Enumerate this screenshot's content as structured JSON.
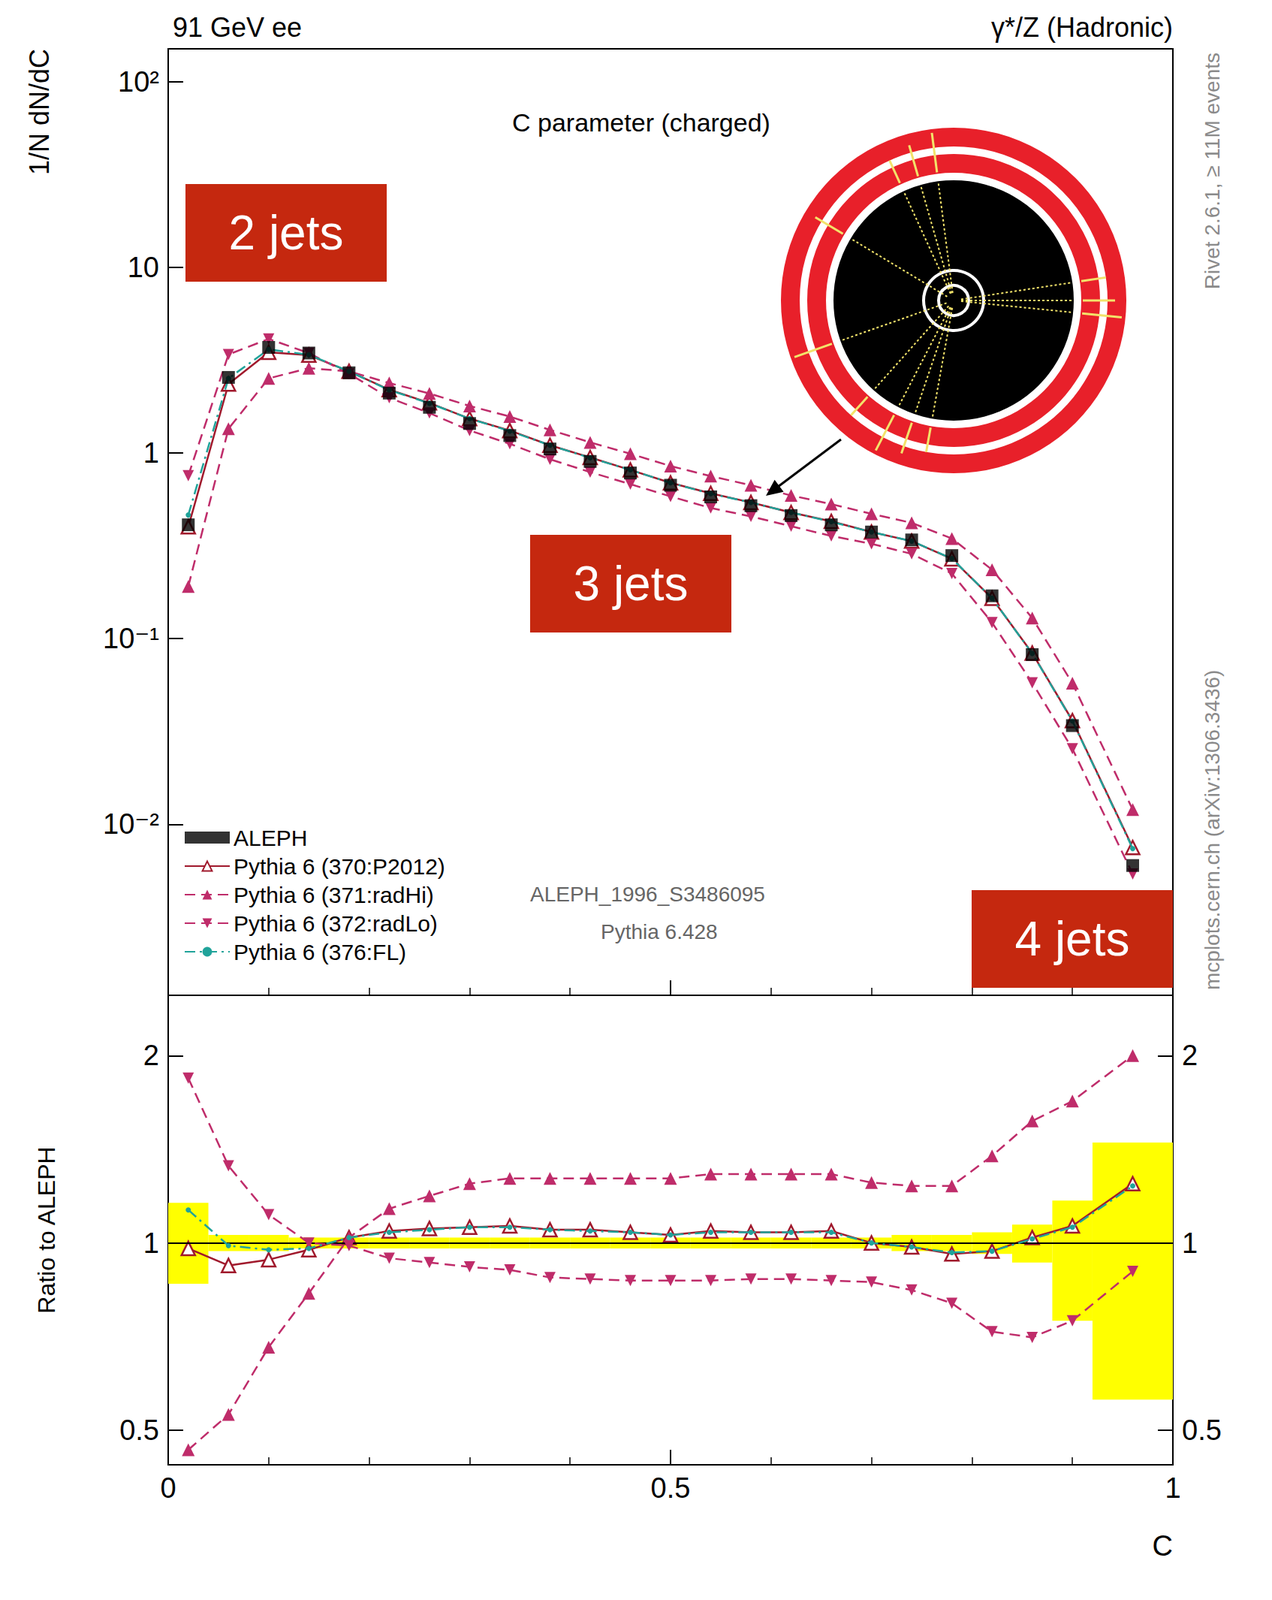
{
  "chart_data": [
    {
      "type": "line",
      "title": "C parameter (charged)",
      "header": [
        "91 GeV ee",
        "γ*/Z (Hadronic)"
      ],
      "annotations": [
        "2 jets",
        "3 jets",
        "4 jets"
      ],
      "notes": [
        "ALEPH_1996_S3486095",
        "Pythia 6.428"
      ],
      "side_texts": [
        "Rivet 2.6.1, ≥ 11M events",
        "mcplots.cern.ch (arXiv:1306.3436)"
      ],
      "y_label": "1/N dN/dC",
      "x": [
        0.02,
        0.06,
        0.1,
        0.14,
        0.18,
        0.22,
        0.26,
        0.3,
        0.34,
        0.38,
        0.42,
        0.46,
        0.5,
        0.54,
        0.58,
        0.62,
        0.66,
        0.7,
        0.74,
        0.78,
        0.82,
        0.86,
        0.9,
        0.96
      ],
      "xlim": [
        0,
        1
      ],
      "xticks": [
        0,
        0.5,
        1
      ],
      "ylim": [
        0.0012,
        150
      ],
      "yticks": [
        {
          "value": 0.01,
          "label": "10⁻²"
        },
        {
          "value": 0.1,
          "label": "10⁻¹"
        },
        1,
        10,
        {
          "value": 100,
          "label": "10²"
        }
      ],
      "log": "y",
      "grid": false,
      "legend": "lower left",
      "series": [
        {
          "name": "ALEPH",
          "type": "scatter",
          "color": "#000000",
          "marker": "square",
          "line_style": "none",
          "values": [
            0.41,
            2.55,
            3.7,
            3.45,
            2.7,
            2.1,
            1.76,
            1.44,
            1.24,
            1.05,
            0.9,
            0.78,
            0.67,
            0.58,
            0.52,
            0.46,
            0.41,
            0.375,
            0.34,
            0.28,
            0.17,
            0.082,
            0.034,
            0.006
          ]
        },
        {
          "name": "Pythia 6 (370:P2012)",
          "type": "line",
          "color": "#a0192c",
          "marker": "triangle-open",
          "line_style": "solid",
          "values": [
            0.4,
            2.35,
            3.48,
            3.36,
            2.75,
            2.19,
            1.86,
            1.53,
            1.32,
            1.1,
            0.945,
            0.81,
            0.69,
            0.606,
            0.541,
            0.478,
            0.428,
            0.375,
            0.335,
            0.269,
            0.165,
            0.0836,
            0.0362,
            0.0075
          ]
        },
        {
          "name": "Pythia 6 (371:radHi)",
          "type": "line",
          "color": "#bf2c6a",
          "marker": "triangle",
          "line_style": "dashed",
          "values": [
            0.191,
            1.35,
            2.52,
            2.86,
            2.75,
            2.38,
            2.09,
            1.79,
            1.57,
            1.33,
            1.14,
            0.99,
            0.85,
            0.75,
            0.67,
            0.59,
            0.53,
            0.47,
            0.42,
            0.346,
            0.235,
            0.129,
            0.0575,
            0.012
          ]
        },
        {
          "name": "Pythia 6 (372:radLo)",
          "type": "line",
          "color": "#bf2c6a",
          "marker": "triangle-down",
          "line_style": "dashed",
          "values": [
            0.754,
            3.39,
            4.11,
            3.45,
            2.67,
            1.98,
            1.64,
            1.32,
            1.12,
            0.924,
            0.788,
            0.679,
            0.583,
            0.505,
            0.455,
            0.403,
            0.357,
            0.324,
            0.286,
            0.224,
            0.122,
            0.0578,
            0.0255,
            0.0054
          ]
        },
        {
          "name": "Pythia 6 (376:FL)",
          "type": "line",
          "color": "#20a39a",
          "marker": "dot",
          "line_style": "dashdot",
          "values": [
            0.463,
            2.52,
            3.61,
            3.38,
            2.75,
            2.18,
            1.85,
            1.53,
            1.31,
            1.1,
            0.94,
            0.81,
            0.69,
            0.603,
            0.541,
            0.478,
            0.426,
            0.375,
            0.335,
            0.27,
            0.165,
            0.0832,
            0.036,
            0.0074
          ]
        }
      ]
    },
    {
      "type": "line",
      "y_label": "Ratio to ALEPH",
      "x_label": "C",
      "x": [
        0.02,
        0.06,
        0.1,
        0.14,
        0.18,
        0.22,
        0.26,
        0.3,
        0.34,
        0.38,
        0.42,
        0.46,
        0.5,
        0.54,
        0.58,
        0.62,
        0.66,
        0.7,
        0.74,
        0.78,
        0.82,
        0.86,
        0.9,
        0.96
      ],
      "bins": [
        0,
        0.04,
        0.08,
        0.12,
        0.16,
        0.2,
        0.24,
        0.28,
        0.32,
        0.36,
        0.4,
        0.44,
        0.48,
        0.52,
        0.56,
        0.6,
        0.64,
        0.68,
        0.72,
        0.76,
        0.8,
        0.84,
        0.88,
        0.92,
        1.0
      ],
      "band": {
        "color": "#ffff00",
        "low": [
          0.86,
          0.97,
          0.97,
          0.98,
          0.98,
          0.98,
          0.98,
          0.98,
          0.98,
          0.98,
          0.98,
          0.98,
          0.98,
          0.98,
          0.98,
          0.98,
          0.98,
          0.98,
          0.97,
          0.97,
          0.96,
          0.93,
          0.75,
          0.56
        ],
        "high": [
          1.16,
          1.03,
          1.03,
          1.02,
          1.02,
          1.02,
          1.02,
          1.02,
          1.02,
          1.02,
          1.02,
          1.02,
          1.02,
          1.02,
          1.02,
          1.02,
          1.02,
          1.02,
          1.03,
          1.03,
          1.04,
          1.07,
          1.17,
          1.45
        ]
      },
      "ref_line": 1,
      "xlim": [
        0,
        1
      ],
      "xticks": [
        0,
        0.5,
        1
      ],
      "ylim": [
        0.44,
        2.5
      ],
      "yticks": [
        0.5,
        1,
        2
      ],
      "log": "y",
      "grid": false,
      "series": [
        {
          "name": "Pythia 6 (370:P2012)",
          "type": "line",
          "color": "#a0192c",
          "marker": "triangle-open",
          "line_style": "solid",
          "values": [
            0.98,
            0.92,
            0.94,
            0.975,
            1.02,
            1.045,
            1.055,
            1.06,
            1.065,
            1.05,
            1.05,
            1.04,
            1.03,
            1.045,
            1.04,
            1.04,
            1.045,
            1.0,
            0.985,
            0.96,
            0.97,
            1.02,
            1.065,
            1.245
          ]
        },
        {
          "name": "Pythia 6 (371:radHi)",
          "type": "line",
          "color": "#bf2c6a",
          "marker": "triangle",
          "line_style": "dashed",
          "values": [
            0.465,
            0.53,
            0.68,
            0.83,
            1.02,
            1.135,
            1.19,
            1.245,
            1.27,
            1.27,
            1.27,
            1.27,
            1.27,
            1.29,
            1.29,
            1.29,
            1.29,
            1.25,
            1.235,
            1.235,
            1.38,
            1.57,
            1.69,
            2.0
          ]
        },
        {
          "name": "Pythia 6 (372:radLo)",
          "type": "line",
          "color": "#bf2c6a",
          "marker": "triangle-down",
          "line_style": "dashed",
          "values": [
            1.84,
            1.33,
            1.11,
            1.0,
            0.99,
            0.945,
            0.93,
            0.915,
            0.905,
            0.88,
            0.875,
            0.87,
            0.87,
            0.87,
            0.875,
            0.875,
            0.87,
            0.865,
            0.84,
            0.8,
            0.72,
            0.705,
            0.75,
            0.9
          ]
        },
        {
          "name": "Pythia 6 (376:FL)",
          "type": "line",
          "color": "#20a39a",
          "marker": "dot",
          "line_style": "dashdot",
          "values": [
            1.13,
            0.99,
            0.975,
            0.98,
            1.02,
            1.04,
            1.05,
            1.06,
            1.06,
            1.05,
            1.045,
            1.04,
            1.03,
            1.04,
            1.04,
            1.04,
            1.04,
            1.0,
            0.985,
            0.965,
            0.97,
            1.015,
            1.06,
            1.235
          ]
        }
      ]
    }
  ]
}
